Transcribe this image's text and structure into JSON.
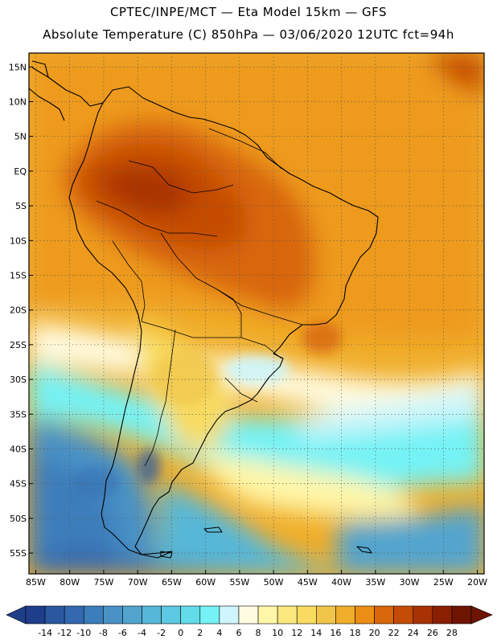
{
  "header": {
    "line1": "CPTEC/INPE/MCT —  Eta Model 15km — GFS",
    "line2": "Absolute Temperature (C) 850hPa — 03/06/2020 12UTC fct=94h"
  },
  "map": {
    "lat_ticks": [
      "15N",
      "10N",
      "5N",
      "EQ",
      "5S",
      "10S",
      "15S",
      "20S",
      "25S",
      "30S",
      "35S",
      "40S",
      "45S",
      "50S",
      "55S"
    ],
    "lat_values": [
      15,
      10,
      5,
      0,
      -5,
      -10,
      -15,
      -20,
      -25,
      -30,
      -35,
      -40,
      -45,
      -50,
      -55
    ],
    "lon_ticks": [
      "85W",
      "80W",
      "75W",
      "70W",
      "65W",
      "60W",
      "55W",
      "50W",
      "45W",
      "40W",
      "35W",
      "30W",
      "25W",
      "20W"
    ],
    "lon_values": [
      -85,
      -80,
      -75,
      -70,
      -65,
      -60,
      -55,
      -50,
      -45,
      -40,
      -35,
      -30,
      -25,
      -20
    ],
    "lat_range": [
      -58,
      17
    ],
    "lon_range": [
      -86,
      -19
    ],
    "grid": true
  },
  "colorbar": {
    "labels": [
      "-14",
      "-12",
      "-10",
      "-8",
      "-6",
      "-4",
      "-2",
      "0",
      "2",
      "4",
      "6",
      "8",
      "10",
      "12",
      "14",
      "16",
      "18",
      "20",
      "22",
      "24",
      "26",
      "28"
    ],
    "colors": [
      "#1f3e8a",
      "#2a58a0",
      "#3468b0",
      "#3c7dbb",
      "#4a92c6",
      "#52a4cf",
      "#56b7d8",
      "#5cc8e2",
      "#63dcea",
      "#74f2f5",
      "#cdf5fb",
      "#fffbe0",
      "#fff6a8",
      "#fbe97f",
      "#f8db60",
      "#f0c54a",
      "#f0ae2b",
      "#ec8d16",
      "#d8660a",
      "#c44c05",
      "#a83203",
      "#8b1f02",
      "#6e1502"
    ],
    "min_color": "#1f3e8a",
    "max_color": "#6e1502"
  }
}
